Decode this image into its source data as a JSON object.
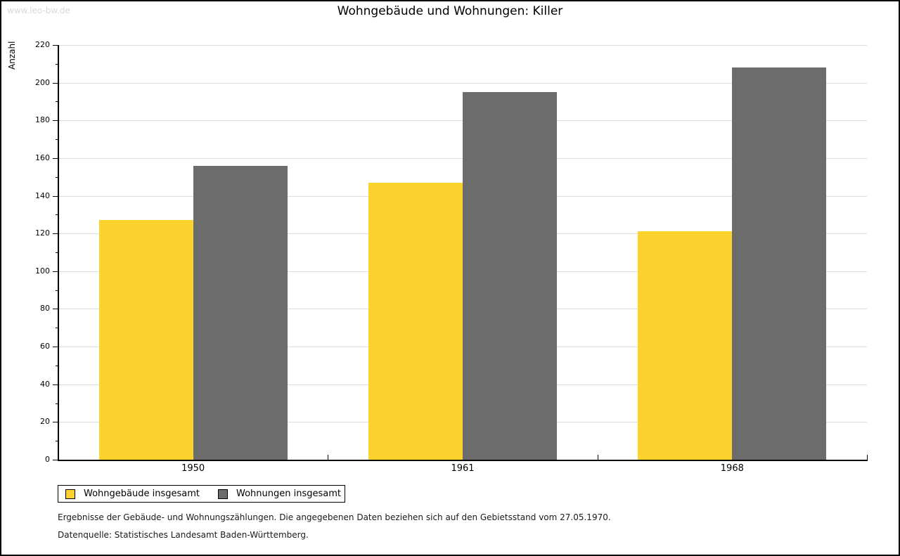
{
  "watermark": "www.leo-bw.de",
  "title": "Wohngebäude und Wohnungen: Killer",
  "chart_data": {
    "type": "bar",
    "title": "Wohngebäude und Wohnungen: Killer",
    "xlabel": "",
    "ylabel": "Anzahl",
    "categories": [
      "1950",
      "1961",
      "1968"
    ],
    "series": [
      {
        "name": "Wohngebäude insgesamt",
        "color": "#FCD32E",
        "values": [
          127,
          147,
          121
        ]
      },
      {
        "name": "Wohnungen insgesamt",
        "color": "#6C6C6C",
        "values": [
          156,
          195,
          208
        ]
      }
    ],
    "ylim": [
      0,
      220
    ],
    "y_major_step": 20,
    "y_minor_step": 10,
    "grid": true,
    "gridline_color": "#dddddd",
    "legend_position": "bottom-left"
  },
  "footnotes": [
    "Ergebnisse der Gebäude- und Wohnungszählungen. Die angegebenen Daten beziehen sich auf den Gebietsstand vom 27.05.1970.",
    "Datenquelle: Statistisches Landesamt Baden-Württemberg."
  ]
}
